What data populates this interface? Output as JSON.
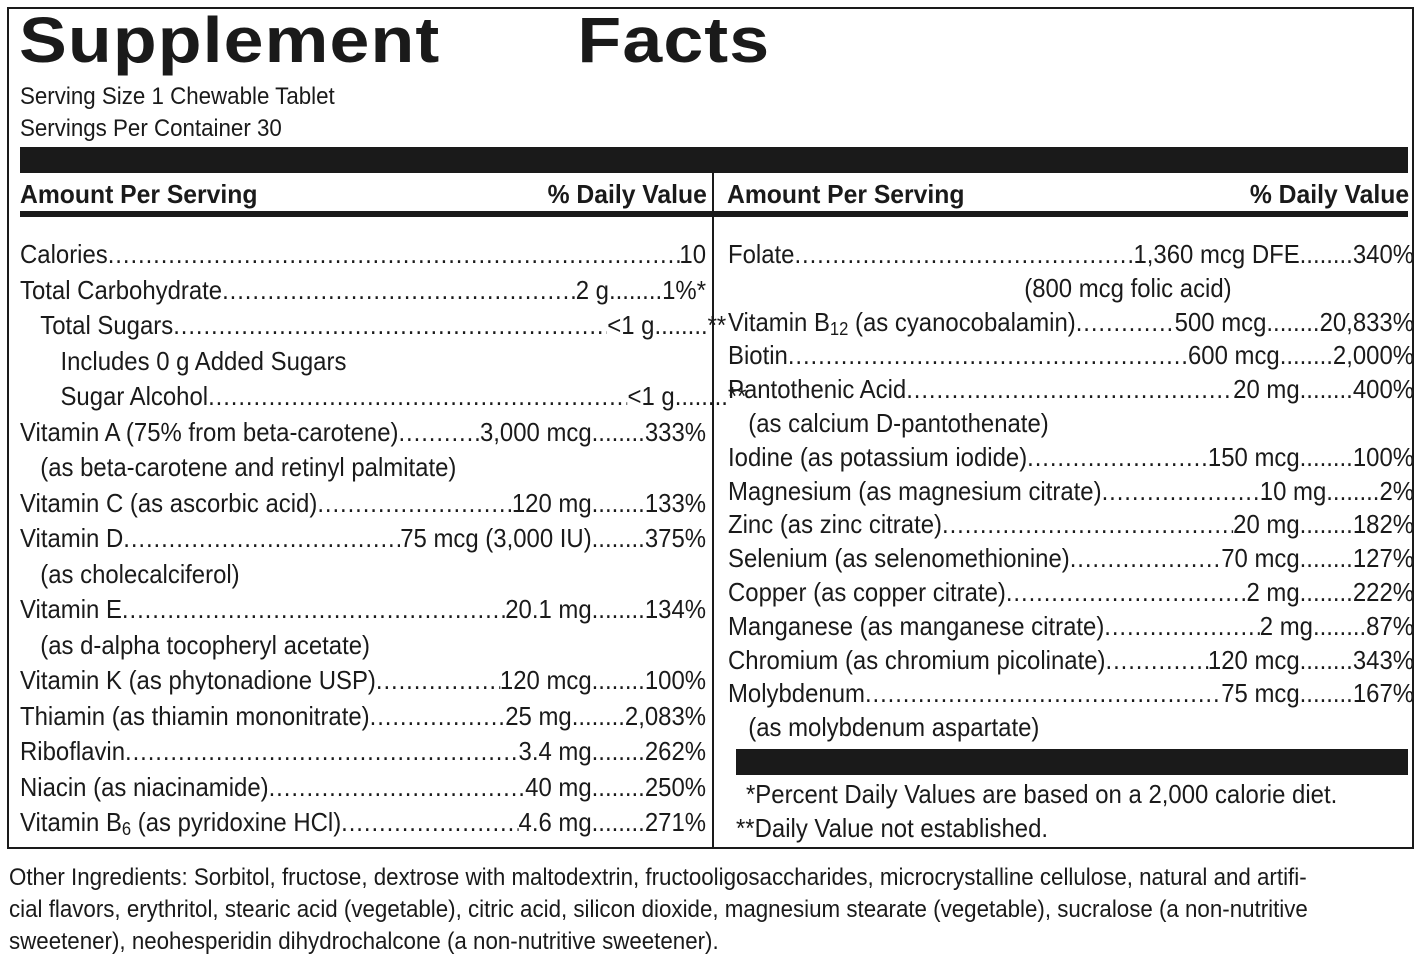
{
  "title": "Supplement   Facts",
  "serving_size": "Serving Size 1 Chewable Tablet",
  "servings_per_container": "Servings Per Container 30",
  "header": {
    "amount": "Amount Per Serving",
    "daily_value": "% Daily Value"
  },
  "left_rows": [
    {
      "label": "Calories",
      "amount": "10",
      "pct": ""
    },
    {
      "label": "Total Carbohydrate",
      "amount": "2 g",
      "pct": "1%*"
    },
    {
      "label": "Total Sugars",
      "amount": "<1 g",
      "pct": "**"
    },
    {
      "label": "Includes 0 g Added Sugars",
      "amount": "",
      "pct": ""
    },
    {
      "label": "Sugar Alcohol",
      "amount": "<1 g",
      "pct": "**"
    },
    {
      "label": "Vitamin A (75% from beta-carotene)",
      "amount": "3,000 mcg",
      "pct": "333%"
    },
    {
      "label": "(as beta-carotene and retinyl palmitate)",
      "amount": "",
      "pct": ""
    },
    {
      "label": "Vitamin C (as ascorbic acid)",
      "amount": "120 mg",
      "pct": "133%"
    },
    {
      "label": "Vitamin D",
      "amount": "75 mcg (3,000 IU)",
      "pct": "375%"
    },
    {
      "label": "(as cholecalciferol)",
      "amount": "",
      "pct": ""
    },
    {
      "label": "Vitamin E",
      "amount": "20.1 mg",
      "pct": "134%"
    },
    {
      "label": "(as d-alpha tocopheryl acetate)",
      "amount": "",
      "pct": ""
    },
    {
      "label": "Vitamin K (as phytonadione USP)",
      "amount": "120 mcg",
      "pct": "100%"
    },
    {
      "label": "Thiamin (as thiamin mononitrate)",
      "amount": "25 mg",
      "pct": "2,083%"
    },
    {
      "label": "Riboflavin",
      "amount": "3.4 mg",
      "pct": "262%"
    },
    {
      "label": "Niacin (as niacinamide)",
      "amount": "40 mg",
      "pct": "250%"
    },
    {
      "label_pre": "Vitamin B",
      "label_sub": "6",
      "label_post": " (as pyridoxine HCl)",
      "amount": "4.6 mg",
      "pct": "271%"
    }
  ],
  "right_rows": [
    {
      "label": "Folate",
      "amount": "1,360 mcg DFE",
      "pct": "340%"
    },
    {
      "label": "(800 mcg folic acid)",
      "amount": "",
      "pct": ""
    },
    {
      "label_pre": "Vitamin B",
      "label_sub": "12",
      "label_post": " (as cyanocobalamin)",
      "amount": "500 mcg",
      "pct": "20,833%"
    },
    {
      "label": "Biotin",
      "amount": "600 mcg",
      "pct": "2,000%"
    },
    {
      "label": "Pantothenic Acid",
      "amount": "20 mg",
      "pct": "400%"
    },
    {
      "label": "(as calcium D-pantothenate)",
      "amount": "",
      "pct": ""
    },
    {
      "label": "Iodine (as potassium iodide)",
      "amount": "150 mcg",
      "pct": "100%"
    },
    {
      "label": "Magnesium (as magnesium citrate)",
      "amount": "10 mg",
      "pct": "2%"
    },
    {
      "label": "Zinc (as zinc citrate)",
      "amount": "20 mg",
      "pct": "182%"
    },
    {
      "label": "Selenium (as selenomethionine)",
      "amount": "70 mcg",
      "pct": "127%"
    },
    {
      "label": "Copper (as copper citrate)",
      "amount": "2 mg",
      "pct": "222%"
    },
    {
      "label": "Manganese (as manganese citrate)",
      "amount": "2 mg",
      "pct": "87%"
    },
    {
      "label": "Chromium (as chromium picolinate)",
      "amount": "120 mcg",
      "pct": "343%"
    },
    {
      "label": "Molybdenum",
      "amount": "75 mcg",
      "pct": "167%"
    },
    {
      "label": "(as molybdenum aspartate)",
      "amount": "",
      "pct": ""
    }
  ],
  "footnotes": [
    "*Percent Daily Values are based on a 2,000 calorie diet.",
    "**Daily Value not established."
  ],
  "other_ingredients": [
    "Other Ingredients: Sorbitol, fructose, dextrose with maltodextrin, fructooligosaccharides, microcrystalline cellulose, natural and artifi-",
    "cial flavors, erythritol, stearic acid (vegetable), citric acid, silicon dioxide, magnesium stearate (vegetable), sucralose (a non-nutritive",
    "sweetener), neohesperidin dihydrochalcone (a non-nutritive sweetener)."
  ]
}
